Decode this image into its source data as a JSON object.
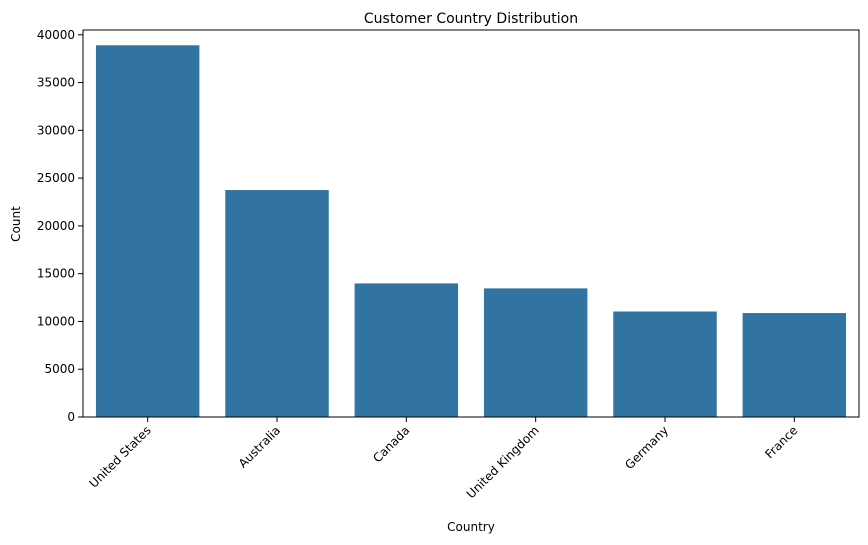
{
  "chart_data": {
    "type": "bar",
    "title": "Customer Country Distribution",
    "xlabel": "Country",
    "ylabel": "Count",
    "categories": [
      "United States",
      "Australia",
      "Canada",
      "United Kingdom",
      "Germany",
      "France"
    ],
    "values": [
      38900,
      23750,
      13980,
      13460,
      11040,
      10880
    ],
    "ylim": [
      0,
      40500
    ],
    "yticks": [
      0,
      5000,
      10000,
      15000,
      20000,
      25000,
      30000,
      35000,
      40000
    ],
    "ytick_labels": [
      "0",
      "5000",
      "10000",
      "15000",
      "20000",
      "25000",
      "30000",
      "35000",
      "40000"
    ],
    "x_tick_rotation_deg": 45,
    "grid": false,
    "legend": "none",
    "bar_color": "#3274a1"
  }
}
